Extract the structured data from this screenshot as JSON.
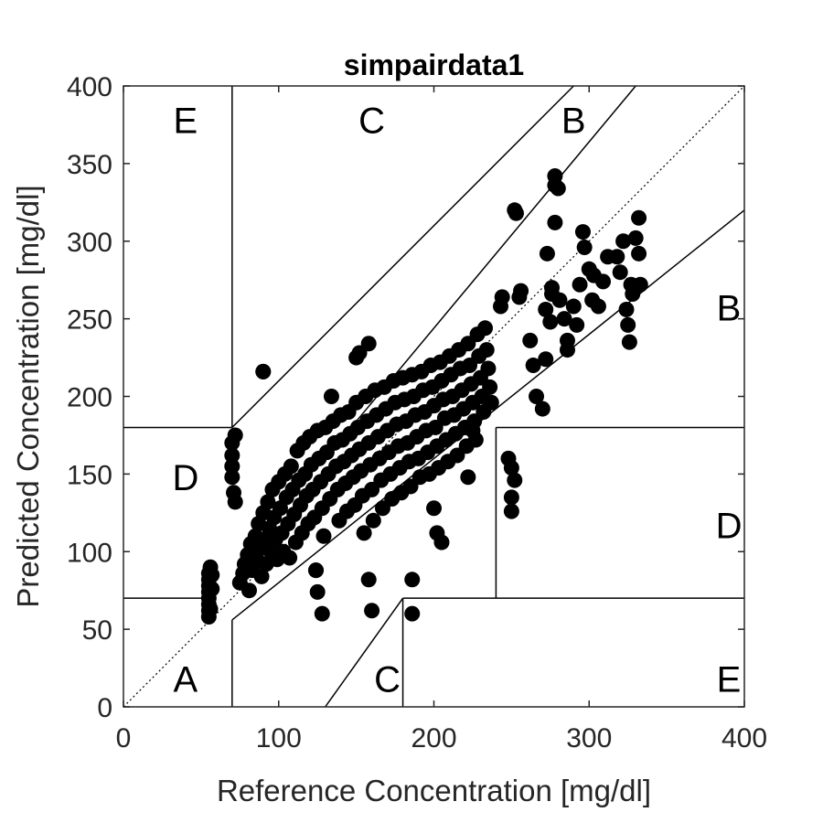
{
  "chart_data": {
    "type": "scatter",
    "title": "simpairdata1",
    "xlabel": "Reference Concentration [mg/dl]",
    "ylabel": "Predicted Concentration [mg/dl]",
    "xlim": [
      0,
      400
    ],
    "ylim": [
      0,
      400
    ],
    "xticks": [
      0,
      100,
      200,
      300,
      400
    ],
    "yticks": [
      0,
      50,
      100,
      150,
      200,
      250,
      300,
      350,
      400
    ],
    "xtick_labels": [
      "0",
      "100",
      "200",
      "300",
      "400"
    ],
    "ytick_labels": [
      "0",
      "50",
      "100",
      "150",
      "200",
      "250",
      "300",
      "350",
      "400"
    ],
    "grid": false,
    "marker_color": "#000000",
    "zone_labels": [
      {
        "text": "A",
        "x": 40,
        "y": 18
      },
      {
        "text": "B",
        "x": 290,
        "y": 378
      },
      {
        "text": "B",
        "x": 390,
        "y": 257
      },
      {
        "text": "C",
        "x": 160,
        "y": 378
      },
      {
        "text": "C",
        "x": 170,
        "y": 18
      },
      {
        "text": "D",
        "x": 40,
        "y": 148
      },
      {
        "text": "D",
        "x": 390,
        "y": 117
      },
      {
        "text": "E",
        "x": 40,
        "y": 378
      },
      {
        "text": "E",
        "x": 390,
        "y": 18
      }
    ],
    "zone_lines": [
      [
        [
          70,
          180
        ],
        [
          70,
          400
        ]
      ],
      [
        [
          0,
          180
        ],
        [
          70,
          180
        ]
      ],
      [
        [
          0,
          70
        ],
        [
          58.3,
          70
        ]
      ],
      [
        [
          70,
          0
        ],
        [
          70,
          56
        ]
      ],
      [
        [
          70,
          56
        ],
        [
          400,
          320
        ]
      ],
      [
        [
          70,
          180
        ],
        [
          290,
          400
        ]
      ],
      [
        [
          130,
          0
        ],
        [
          180,
          70
        ]
      ],
      [
        [
          180,
          0
        ],
        [
          180,
          70
        ]
      ],
      [
        [
          180,
          70
        ],
        [
          400,
          70
        ]
      ],
      [
        [
          240,
          70
        ],
        [
          240,
          180
        ]
      ],
      [
        [
          240,
          180
        ],
        [
          400,
          180
        ]
      ],
      [
        [
          146.7,
          180
        ],
        [
          330,
          400
        ]
      ]
    ],
    "identity_line": [
      [
        0,
        0
      ],
      [
        400,
        400
      ]
    ],
    "cluster_points": [
      [
        55,
        58
      ],
      [
        55,
        62
      ],
      [
        55,
        66
      ],
      [
        55,
        70
      ],
      [
        55,
        74
      ],
      [
        55,
        78
      ],
      [
        55,
        82
      ],
      [
        55,
        86
      ],
      [
        56,
        90
      ],
      [
        56,
        63
      ],
      [
        57,
        76
      ],
      [
        57,
        85
      ],
      [
        70,
        170
      ],
      [
        70,
        162
      ],
      [
        70,
        155
      ],
      [
        70,
        148
      ],
      [
        71,
        138
      ],
      [
        72,
        132
      ],
      [
        72,
        175
      ],
      [
        75,
        80
      ],
      [
        77,
        86
      ],
      [
        78,
        92
      ],
      [
        80,
        98
      ],
      [
        81,
        75
      ],
      [
        82,
        105
      ],
      [
        83,
        88
      ],
      [
        85,
        110
      ],
      [
        86,
        95
      ],
      [
        87,
        118
      ],
      [
        88,
        102
      ],
      [
        89,
        84
      ],
      [
        90,
        125
      ],
      [
        90,
        216
      ],
      [
        91,
        108
      ],
      [
        92,
        92
      ],
      [
        93,
        132
      ],
      [
        94,
        115
      ],
      [
        95,
        100
      ],
      [
        96,
        140
      ],
      [
        97,
        122
      ],
      [
        98,
        108
      ],
      [
        99,
        95
      ],
      [
        100,
        145
      ],
      [
        101,
        128
      ],
      [
        102,
        112
      ],
      [
        103,
        100
      ],
      [
        104,
        150
      ],
      [
        105,
        135
      ],
      [
        106,
        118
      ],
      [
        107,
        96
      ],
      [
        108,
        155
      ],
      [
        109,
        140
      ],
      [
        110,
        124
      ],
      [
        111,
        106
      ],
      [
        112,
        165
      ],
      [
        113,
        146
      ],
      [
        114,
        130
      ],
      [
        115,
        112
      ],
      [
        116,
        170
      ],
      [
        117,
        150
      ],
      [
        118,
        136
      ],
      [
        119,
        118
      ],
      [
        120,
        174
      ],
      [
        121,
        156
      ],
      [
        122,
        140
      ],
      [
        123,
        122
      ],
      [
        124,
        88
      ],
      [
        125,
        178
      ],
      [
        126,
        160
      ],
      [
        127,
        145
      ],
      [
        128,
        128
      ],
      [
        129,
        110
      ],
      [
        130,
        180
      ],
      [
        131,
        164
      ],
      [
        132,
        150
      ],
      [
        133,
        134
      ],
      [
        134,
        200
      ],
      [
        135,
        184
      ],
      [
        136,
        170
      ],
      [
        137,
        155
      ],
      [
        138,
        140
      ],
      [
        139,
        120
      ],
      [
        140,
        188
      ],
      [
        141,
        172
      ],
      [
        142,
        158
      ],
      [
        143,
        144
      ],
      [
        144,
        126
      ],
      [
        145,
        190
      ],
      [
        146,
        176
      ],
      [
        147,
        162
      ],
      [
        148,
        148
      ],
      [
        149,
        130
      ],
      [
        150,
        196
      ],
      [
        151,
        180
      ],
      [
        152,
        166
      ],
      [
        153,
        152
      ],
      [
        154,
        136
      ],
      [
        155,
        112
      ],
      [
        156,
        200
      ],
      [
        157,
        184
      ],
      [
        158,
        170
      ],
      [
        159,
        156
      ],
      [
        160,
        140
      ],
      [
        161,
        120
      ],
      [
        162,
        204
      ],
      [
        163,
        188
      ],
      [
        164,
        174
      ],
      [
        165,
        160
      ],
      [
        166,
        146
      ],
      [
        167,
        128
      ],
      [
        168,
        206
      ],
      [
        169,
        192
      ],
      [
        170,
        178
      ],
      [
        171,
        164
      ],
      [
        172,
        150
      ],
      [
        173,
        134
      ],
      [
        174,
        210
      ],
      [
        175,
        196
      ],
      [
        176,
        182
      ],
      [
        177,
        168
      ],
      [
        178,
        154
      ],
      [
        179,
        138
      ],
      [
        180,
        212
      ],
      [
        181,
        198
      ],
      [
        182,
        184
      ],
      [
        183,
        170
      ],
      [
        184,
        158
      ],
      [
        185,
        142
      ],
      [
        186,
        214
      ],
      [
        187,
        200
      ],
      [
        188,
        188
      ],
      [
        189,
        174
      ],
      [
        190,
        160
      ],
      [
        191,
        148
      ],
      [
        192,
        216
      ],
      [
        193,
        204
      ],
      [
        194,
        190
      ],
      [
        195,
        178
      ],
      [
        196,
        164
      ],
      [
        197,
        150
      ],
      [
        198,
        220
      ],
      [
        199,
        206
      ],
      [
        200,
        194
      ],
      [
        201,
        180
      ],
      [
        202,
        168
      ],
      [
        203,
        154
      ],
      [
        204,
        222
      ],
      [
        205,
        210
      ],
      [
        206,
        198
      ],
      [
        207,
        186
      ],
      [
        208,
        172
      ],
      [
        209,
        158
      ],
      [
        210,
        226
      ],
      [
        211,
        214
      ],
      [
        212,
        200
      ],
      [
        213,
        188
      ],
      [
        214,
        176
      ],
      [
        215,
        162
      ],
      [
        216,
        230
      ],
      [
        217,
        218
      ],
      [
        218,
        204
      ],
      [
        219,
        192
      ],
      [
        220,
        180
      ],
      [
        221,
        168
      ],
      [
        222,
        234
      ],
      [
        223,
        220
      ],
      [
        224,
        208
      ],
      [
        225,
        196
      ],
      [
        226,
        184
      ],
      [
        227,
        172
      ],
      [
        228,
        240
      ],
      [
        229,
        226
      ],
      [
        230,
        212
      ],
      [
        231,
        200
      ],
      [
        232,
        190
      ],
      [
        233,
        244
      ],
      [
        234,
        230
      ],
      [
        235,
        218
      ],
      [
        236,
        206
      ],
      [
        237,
        196
      ]
    ],
    "outlier_points": [
      [
        90,
        216
      ],
      [
        124,
        88
      ],
      [
        128,
        60
      ],
      [
        125,
        74
      ],
      [
        150,
        225
      ],
      [
        152,
        228
      ],
      [
        158,
        234
      ],
      [
        158,
        82
      ],
      [
        160,
        62
      ],
      [
        186,
        82
      ],
      [
        186,
        60
      ],
      [
        200,
        128
      ],
      [
        202,
        112
      ],
      [
        205,
        106
      ],
      [
        222,
        148
      ],
      [
        225,
        178
      ],
      [
        243,
        258
      ],
      [
        244,
        264
      ],
      [
        248,
        160
      ],
      [
        250,
        154
      ],
      [
        250,
        135
      ],
      [
        250,
        126
      ],
      [
        252,
        146
      ],
      [
        252,
        320
      ],
      [
        253,
        318
      ],
      [
        255,
        264
      ],
      [
        256,
        268
      ],
      [
        262,
        236
      ],
      [
        264,
        220
      ],
      [
        266,
        200
      ],
      [
        270,
        192
      ],
      [
        272,
        224
      ],
      [
        272,
        256
      ],
      [
        273,
        292
      ],
      [
        275,
        248
      ],
      [
        276,
        266
      ],
      [
        276,
        270
      ],
      [
        278,
        342
      ],
      [
        278,
        336
      ],
      [
        278,
        312
      ],
      [
        280,
        334
      ],
      [
        281,
        262
      ],
      [
        284,
        250
      ],
      [
        286,
        236
      ],
      [
        286,
        230
      ],
      [
        290,
        258
      ],
      [
        292,
        246
      ],
      [
        294,
        272
      ],
      [
        296,
        306
      ],
      [
        297,
        296
      ],
      [
        300,
        282
      ],
      [
        302,
        262
      ],
      [
        303,
        278
      ],
      [
        306,
        258
      ],
      [
        309,
        274
      ],
      [
        312,
        290
      ],
      [
        318,
        290
      ],
      [
        320,
        280
      ],
      [
        322,
        300
      ],
      [
        324,
        256
      ],
      [
        325,
        246
      ],
      [
        326,
        235
      ],
      [
        327,
        272
      ],
      [
        328,
        266
      ],
      [
        330,
        302
      ],
      [
        332,
        315
      ],
      [
        332,
        292
      ],
      [
        333,
        272
      ]
    ]
  }
}
